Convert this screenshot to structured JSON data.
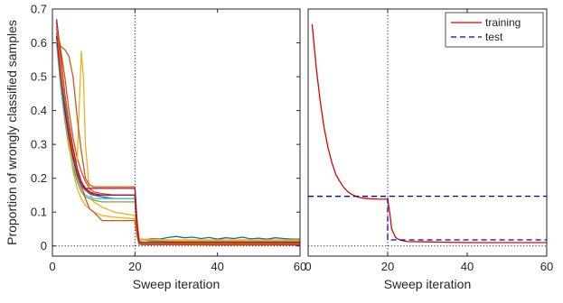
{
  "chart_data": [
    {
      "type": "line",
      "title": "",
      "xlabel": "Sweep iteration",
      "ylabel": "Proportion of wrongly classified samples",
      "xlim": [
        0,
        60
      ],
      "ylim": [
        -0.03,
        0.7
      ],
      "xticks": [
        0,
        20,
        40,
        60
      ],
      "yticks": [
        0,
        0.1,
        0.2,
        0.3,
        0.4,
        0.5,
        0.6,
        0.7
      ],
      "xtick_labels": [
        "0",
        "20",
        "40",
        "60"
      ],
      "ytick_labels": [
        "0",
        "0.1",
        "0.2",
        "0.3",
        "0.4",
        "0.5",
        "0.6",
        "0.7"
      ],
      "reference_lines": [
        {
          "orientation": "vertical",
          "value": 20,
          "style": "dotted"
        },
        {
          "orientation": "horizontal",
          "value": 0,
          "style": "dotted"
        }
      ],
      "series": [
        {
          "color": "#0072bd",
          "x": [
            1,
            2,
            3,
            4,
            5,
            6,
            7,
            8,
            9,
            10,
            12,
            15,
            20,
            20.5,
            21,
            22,
            24,
            26,
            28,
            30,
            32,
            34,
            36,
            38,
            40,
            42,
            44,
            46,
            48,
            50,
            52,
            54,
            56,
            58,
            60
          ],
          "y": [
            0.63,
            0.52,
            0.42,
            0.33,
            0.26,
            0.21,
            0.19,
            0.17,
            0.16,
            0.15,
            0.145,
            0.14,
            0.14,
            0.06,
            0.02,
            0.018,
            0.022,
            0.02,
            0.025,
            0.028,
            0.024,
            0.026,
            0.022,
            0.025,
            0.02,
            0.024,
            0.022,
            0.026,
            0.021,
            0.023,
            0.02,
            0.024,
            0.022,
            0.02,
            0.02
          ]
        },
        {
          "color": "#d95319",
          "x": [
            1,
            2,
            3,
            4,
            5,
            6,
            7,
            8,
            9,
            10,
            12,
            15,
            20,
            20.5,
            21,
            22,
            24,
            30,
            40,
            50,
            60
          ],
          "y": [
            0.66,
            0.58,
            0.5,
            0.4,
            0.32,
            0.26,
            0.22,
            0.19,
            0.17,
            0.16,
            0.155,
            0.15,
            0.15,
            0.07,
            0.015,
            0.012,
            0.012,
            0.01,
            0.01,
            0.01,
            0.01
          ]
        },
        {
          "color": "#edb120",
          "x": [
            1,
            2,
            3,
            4,
            5,
            6,
            7,
            7.5,
            8,
            9,
            10,
            12,
            15,
            20,
            20.5,
            21,
            22,
            24,
            30,
            40,
            50,
            60
          ],
          "y": [
            0.6,
            0.5,
            0.4,
            0.32,
            0.27,
            0.25,
            0.575,
            0.5,
            0.3,
            0.16,
            0.13,
            0.115,
            0.1,
            0.09,
            0.04,
            0.02,
            0.02,
            0.02,
            0.015,
            0.015,
            0.015,
            0.015
          ]
        },
        {
          "color": "#7e2f8e",
          "x": [
            1,
            2,
            3,
            4,
            5,
            6,
            7,
            8,
            9,
            10,
            12,
            15,
            20,
            20.5,
            21,
            22,
            24,
            30,
            40,
            50,
            60
          ],
          "y": [
            0.62,
            0.5,
            0.4,
            0.32,
            0.26,
            0.21,
            0.18,
            0.165,
            0.155,
            0.15,
            0.15,
            0.15,
            0.15,
            0.06,
            0.005,
            0.004,
            0.004,
            0.004,
            0.004,
            0.004,
            0.004
          ]
        },
        {
          "color": "#77ac30",
          "x": [
            1,
            2,
            3,
            4,
            5,
            6,
            7,
            8,
            9,
            10,
            12,
            15,
            20,
            20.5,
            21,
            22,
            24,
            30,
            40,
            50,
            60
          ],
          "y": [
            0.6,
            0.47,
            0.37,
            0.29,
            0.23,
            0.19,
            0.16,
            0.145,
            0.14,
            0.135,
            0.13,
            0.13,
            0.13,
            0.05,
            0.008,
            0.008,
            0.008,
            0.008,
            0.008,
            0.008,
            0.008
          ]
        },
        {
          "color": "#4dbeee",
          "x": [
            1,
            2,
            3,
            4,
            5,
            6,
            7,
            8,
            9,
            10,
            12,
            15,
            20,
            20.5,
            21,
            22,
            24,
            30,
            40,
            50,
            60
          ],
          "y": [
            0.6,
            0.48,
            0.38,
            0.3,
            0.24,
            0.2,
            0.17,
            0.15,
            0.145,
            0.14,
            0.14,
            0.14,
            0.14,
            0.05,
            0.012,
            0.012,
            0.012,
            0.012,
            0.012,
            0.012,
            0.012
          ]
        },
        {
          "color": "#a2142f",
          "x": [
            1,
            2,
            3,
            4,
            5,
            6,
            7,
            8,
            9,
            10,
            12,
            15,
            20,
            20.5,
            21,
            22,
            24,
            30,
            40,
            50,
            60
          ],
          "y": [
            0.67,
            0.56,
            0.45,
            0.36,
            0.29,
            0.23,
            0.19,
            0.17,
            0.16,
            0.155,
            0.15,
            0.15,
            0.15,
            0.05,
            0.005,
            0.004,
            0.004,
            0.004,
            0.003,
            0.003,
            0.003
          ]
        },
        {
          "color": "#d95319",
          "x": [
            1,
            2,
            3,
            4,
            5,
            6,
            7,
            8,
            9,
            10,
            12,
            15,
            20,
            20.5,
            21,
            22,
            24,
            30,
            40,
            50,
            60
          ],
          "y": [
            0.64,
            0.59,
            0.58,
            0.56,
            0.5,
            0.38,
            0.28,
            0.2,
            0.18,
            0.175,
            0.175,
            0.175,
            0.175,
            0.08,
            0.02,
            0.018,
            0.015,
            0.012,
            0.012,
            0.012,
            0.012
          ]
        },
        {
          "color": "#edb120",
          "x": [
            1,
            2,
            3,
            4,
            5,
            6,
            7,
            8,
            9,
            10,
            12,
            15,
            20,
            20.5,
            21,
            22,
            24,
            30,
            40,
            50,
            60
          ],
          "y": [
            0.65,
            0.52,
            0.4,
            0.3,
            0.22,
            0.17,
            0.14,
            0.12,
            0.11,
            0.1,
            0.09,
            0.085,
            0.08,
            0.04,
            0.018,
            0.018,
            0.018,
            0.018,
            0.018,
            0.018,
            0.018
          ]
        },
        {
          "color": "#d95319",
          "x": [
            1,
            2,
            3,
            4,
            5,
            6,
            7,
            8,
            9,
            10,
            12,
            15,
            20,
            20.5,
            21,
            22,
            24,
            30,
            40,
            50,
            60
          ],
          "y": [
            0.65,
            0.55,
            0.45,
            0.35,
            0.27,
            0.22,
            0.18,
            0.14,
            0.11,
            0.1,
            0.075,
            0.075,
            0.075,
            0.03,
            0.005,
            0.005,
            0.005,
            0.005,
            0.005,
            0.005,
            0.005
          ]
        },
        {
          "color": "#a2142f",
          "x": [
            1,
            2,
            3,
            4,
            5,
            6,
            7,
            8,
            9,
            10,
            12,
            15,
            20,
            20.5,
            21,
            22,
            24,
            30,
            40,
            50,
            60
          ],
          "y": [
            0.62,
            0.5,
            0.4,
            0.32,
            0.26,
            0.21,
            0.18,
            0.17,
            0.17,
            0.17,
            0.17,
            0.17,
            0.17,
            0.06,
            0.01,
            0.01,
            0.01,
            0.01,
            0.01,
            0.01,
            0.01
          ]
        }
      ]
    },
    {
      "type": "line",
      "title": "",
      "xlabel": "Sweep iteration",
      "ylabel": "",
      "xlim": [
        0,
        60
      ],
      "ylim": [
        -0.03,
        0.7
      ],
      "xticks": [
        0,
        20,
        40,
        60
      ],
      "xtick_labels": [
        "0",
        "20",
        "40",
        "60"
      ],
      "legend_position": "top-right",
      "reference_lines": [
        {
          "orientation": "vertical",
          "value": 20,
          "style": "dotted"
        },
        {
          "orientation": "horizontal",
          "value": 0,
          "style": "dotted"
        }
      ],
      "series": [
        {
          "name": "training",
          "color": "#e00000",
          "style": "solid",
          "x": [
            1,
            2,
            3,
            4,
            5,
            6,
            7,
            8,
            9,
            10,
            11,
            12,
            13,
            14,
            15,
            16,
            17,
            18,
            19,
            20,
            20.5,
            21,
            22,
            23,
            24,
            25,
            30,
            35,
            40,
            45,
            50,
            55,
            60
          ],
          "y": [
            0.655,
            0.53,
            0.43,
            0.35,
            0.29,
            0.245,
            0.21,
            0.19,
            0.172,
            0.16,
            0.152,
            0.147,
            0.143,
            0.141,
            0.14,
            0.139,
            0.139,
            0.138,
            0.138,
            0.138,
            0.1,
            0.05,
            0.025,
            0.018,
            0.015,
            0.013,
            0.012,
            0.011,
            0.01,
            0.01,
            0.01,
            0.01,
            0.01
          ]
        },
        {
          "name": "test",
          "color": "#0000c8",
          "style": "dashed",
          "x": [
            0,
            20,
            20,
            60
          ],
          "y": [
            0.147,
            0.147,
            0.018,
            0.018
          ]
        },
        {
          "color": "#0000c8",
          "style": "dashed",
          "x": [
            0,
            60
          ],
          "y": [
            0.147,
            0.147
          ]
        }
      ]
    }
  ]
}
